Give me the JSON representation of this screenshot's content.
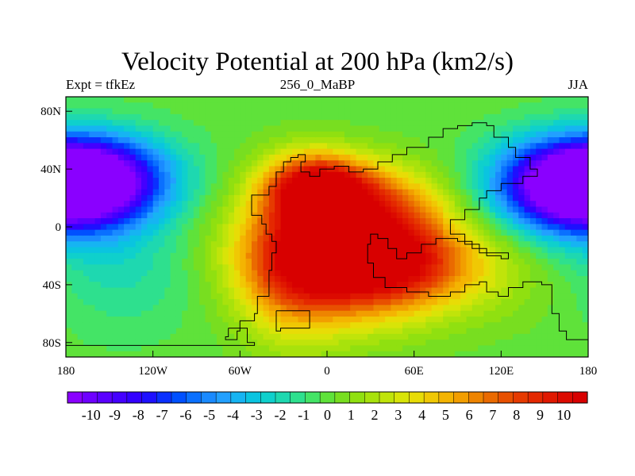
{
  "chart_data": {
    "type": "heatmap",
    "title": "Velocity Potential at 200 hPa (km2/s)",
    "subtitle_left": "Expt = tfkEz",
    "subtitle_center": "256_0_MaBP",
    "subtitle_right": "JJA",
    "xlim": [
      -180,
      180
    ],
    "ylim": [
      -90,
      90
    ],
    "x_ticks": [
      {
        "value": -180,
        "label": "180"
      },
      {
        "value": -120,
        "label": "120W"
      },
      {
        "value": -60,
        "label": "60W"
      },
      {
        "value": 0,
        "label": "0"
      },
      {
        "value": 60,
        "label": "60E"
      },
      {
        "value": 120,
        "label": "120E"
      },
      {
        "value": 180,
        "label": "180"
      }
    ],
    "y_ticks": [
      {
        "value": 80,
        "label": "80N"
      },
      {
        "value": 40,
        "label": "40N"
      },
      {
        "value": 0,
        "label": "0"
      },
      {
        "value": -40,
        "label": "40S"
      },
      {
        "value": -80,
        "label": "80S"
      }
    ],
    "colorbar": {
      "min": -11,
      "max": 11,
      "labels": [
        "-10",
        "-9",
        "-8",
        "-7",
        "-6",
        "-5",
        "-4",
        "-3",
        "-2",
        "-1",
        "0",
        "1",
        "2",
        "3",
        "4",
        "5",
        "6",
        "7",
        "8",
        "9",
        "10"
      ],
      "label_values": [
        -10,
        -9,
        -8,
        -7,
        -6,
        -5,
        -4,
        -3,
        -2,
        -1,
        0,
        1,
        2,
        3,
        4,
        5,
        6,
        7,
        8,
        9,
        10
      ],
      "colors": [
        "#8a00ff",
        "#6e00ff",
        "#5a00ff",
        "#4400ff",
        "#3300ff",
        "#1e10ff",
        "#0a30ff",
        "#0050ff",
        "#0a70ff",
        "#1a8aff",
        "#22a0ff",
        "#16b4f2",
        "#0ac4e0",
        "#0fd0cc",
        "#1ed8b0",
        "#2ee08e",
        "#44e466",
        "#5fe23a",
        "#78de20",
        "#90e010",
        "#a8e20c",
        "#c0e40a",
        "#d8e408",
        "#e8dc06",
        "#f0c804",
        "#f4b402",
        "#f29e00",
        "#ee8400",
        "#ea6a00",
        "#e85000",
        "#e63a00",
        "#e42800",
        "#e01800",
        "#dc0a00",
        "#d80000"
      ]
    },
    "field_centers": [
      {
        "lon": 10,
        "lat": -20,
        "value": 11,
        "rlon": 48,
        "rlat": 30
      },
      {
        "lon": -8,
        "lat": 28,
        "value": 9,
        "rlon": 24,
        "rlat": 16
      },
      {
        "lon": 55,
        "lat": -25,
        "value": 5,
        "rlon": 45,
        "rlat": 22
      },
      {
        "lon": 28,
        "lat": 20,
        "value": 4,
        "rlon": 35,
        "rlat": 18
      },
      {
        "lon": -25,
        "lat": -30,
        "value": 3,
        "rlon": 25,
        "rlat": 40
      },
      {
        "lon": -170,
        "lat": 35,
        "value": -10,
        "rlon": 40,
        "rlat": 20
      },
      {
        "lon": 175,
        "lat": 25,
        "value": -10,
        "rlon": 40,
        "rlat": 22
      },
      {
        "lon": -150,
        "lat": -30,
        "value": -2,
        "rlon": 50,
        "rlat": 30
      },
      {
        "lon": 150,
        "lat": -40,
        "value": 1,
        "rlon": 40,
        "rlat": 25
      }
    ],
    "coastline_lonlat": [
      [
        [
          -55,
          -78
        ],
        [
          -55,
          -70
        ],
        [
          -60,
          -65
        ],
        [
          -50,
          -60
        ],
        [
          -48,
          -48
        ],
        [
          -40,
          -30
        ],
        [
          -38,
          -18
        ],
        [
          -35,
          -10
        ],
        [
          -38,
          -5
        ],
        [
          -42,
          2
        ],
        [
          -45,
          8
        ],
        [
          -52,
          12
        ],
        [
          -52,
          22
        ],
        [
          -40,
          28
        ],
        [
          -35,
          38
        ],
        [
          -30,
          45
        ],
        [
          -25,
          48
        ],
        [
          -20,
          50
        ],
        [
          -15,
          45
        ],
        [
          -18,
          38
        ],
        [
          -12,
          35
        ],
        [
          -5,
          40
        ],
        [
          5,
          42
        ],
        [
          15,
          38
        ],
        [
          25,
          40
        ],
        [
          35,
          45
        ],
        [
          45,
          50
        ],
        [
          55,
          55
        ],
        [
          70,
          62
        ],
        [
          80,
          68
        ],
        [
          90,
          70
        ],
        [
          100,
          72
        ],
        [
          110,
          70
        ],
        [
          115,
          62
        ],
        [
          125,
          55
        ],
        [
          130,
          48
        ],
        [
          140,
          40
        ],
        [
          145,
          35
        ],
        [
          135,
          30
        ],
        [
          120,
          25
        ],
        [
          110,
          20
        ],
        [
          105,
          12
        ],
        [
          95,
          5
        ],
        [
          85,
          -5
        ],
        [
          95,
          -12
        ],
        [
          105,
          -18
        ],
        [
          110,
          -20
        ],
        [
          120,
          -22
        ],
        [
          125,
          -18
        ],
        [
          110,
          -15
        ],
        [
          100,
          -10
        ],
        [
          90,
          -8
        ],
        [
          75,
          -12
        ],
        [
          65,
          -18
        ],
        [
          55,
          -22
        ],
        [
          48,
          -15
        ],
        [
          42,
          -8
        ],
        [
          35,
          -5
        ],
        [
          30,
          -12
        ],
        [
          28,
          -25
        ],
        [
          32,
          -35
        ],
        [
          40,
          -42
        ],
        [
          55,
          -45
        ],
        [
          70,
          -48
        ],
        [
          85,
          -45
        ],
        [
          95,
          -40
        ],
        [
          105,
          -38
        ],
        [
          110,
          -45
        ],
        [
          118,
          -48
        ],
        [
          125,
          -42
        ],
        [
          135,
          -38
        ],
        [
          148,
          -40
        ],
        [
          155,
          -60
        ],
        [
          160,
          -72
        ],
        [
          165,
          -78
        ],
        [
          180,
          -80
        ]
      ],
      [
        [
          -180,
          -82
        ],
        [
          -60,
          -82
        ],
        [
          -50,
          -80
        ],
        [
          -55,
          -78
        ]
      ],
      [
        [
          -35,
          -58
        ],
        [
          -15,
          -58
        ],
        [
          -12,
          -70
        ],
        [
          -32,
          -72
        ],
        [
          -35,
          -58
        ]
      ],
      [
        [
          -68,
          -70
        ],
        [
          -60,
          -72
        ],
        [
          -62,
          -78
        ],
        [
          -70,
          -76
        ],
        [
          -68,
          -70
        ]
      ]
    ]
  }
}
